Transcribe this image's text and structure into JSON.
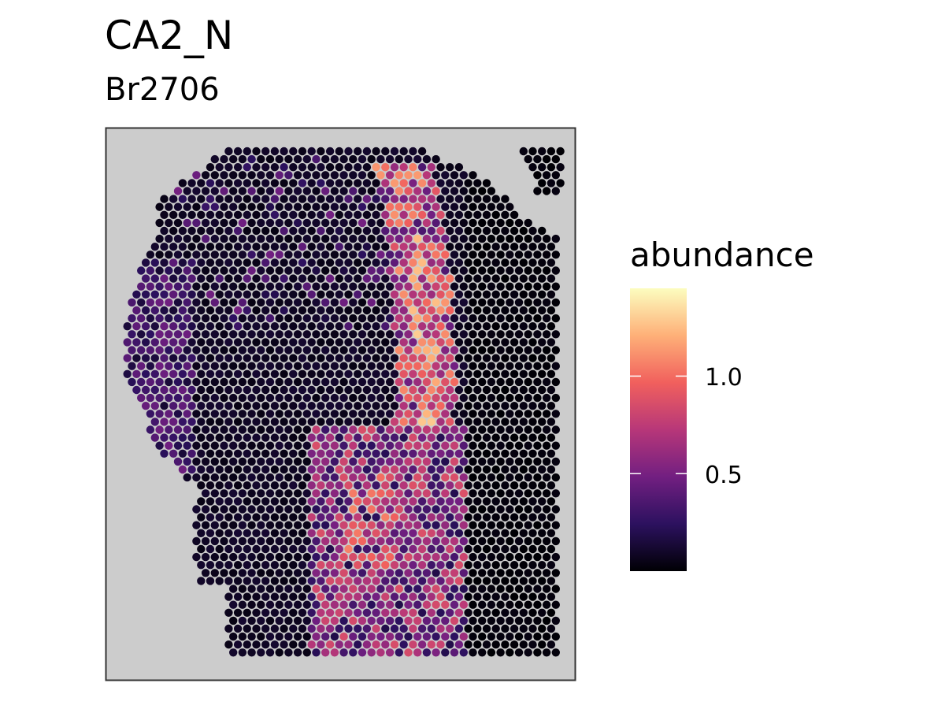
{
  "chart_data": {
    "type": "scatter",
    "title": "CA2_N",
    "subtitle": "Br2706",
    "xlabel": "",
    "ylabel": "",
    "grid": false,
    "panel_background": "#cccccc",
    "legend": {
      "title": "abundance",
      "placement": "right",
      "range": [
        0.0,
        1.45
      ],
      "ticks": [
        0.5,
        1.0
      ],
      "tick_labels": [
        "0.5",
        "1.0"
      ],
      "colormap": "magma",
      "colors": [
        "#000004",
        "#2c115f",
        "#721f81",
        "#b73779",
        "#f1605d",
        "#feb078",
        "#fcfdbf"
      ]
    },
    "spot_layout": "hexagonal-array",
    "spatial_pattern": [
      {
        "region": "upper tissue background",
        "abundance_range": [
          0.0,
          0.15
        ]
      },
      {
        "region": "left edge",
        "abundance_range": [
          0.1,
          0.5
        ]
      },
      {
        "region": "curved central band (upper)",
        "abundance_range": [
          0.4,
          1.2
        ]
      },
      {
        "region": "lower central band",
        "abundance_range": [
          0.3,
          1.0
        ]
      },
      {
        "region": "right tissue block",
        "abundance_range": [
          0.0,
          0.05
        ]
      }
    ]
  }
}
